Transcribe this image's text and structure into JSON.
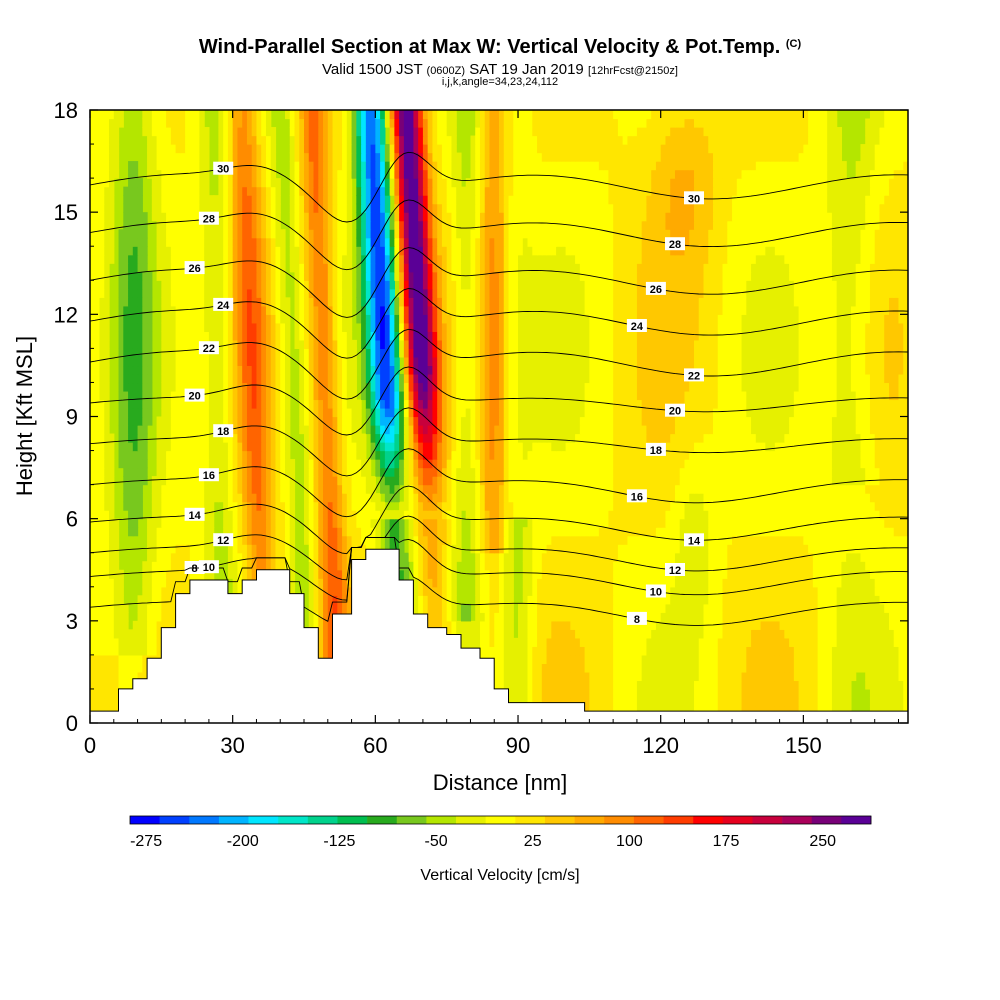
{
  "header": {
    "title": "Wind-Parallel Section at Max W: Vertical Velocity & Pot.Temp.",
    "title_unit": "(C)",
    "valid_a": "Valid 1500 JST",
    "valid_b": "(0600Z)",
    "valid_c": "SAT 19 Jan 2019",
    "valid_d": "[12hrFcst@2150z]",
    "ijk": "i,j,k,angle=34,23,24,112"
  },
  "chart_data": {
    "type": "heatmap",
    "xlabel": "Distance [nm]",
    "ylabel": "Height [Kft MSL]",
    "xlim": [
      0,
      172
    ],
    "ylim": [
      0,
      18
    ],
    "x_ticks": [
      0,
      30,
      60,
      90,
      120,
      150
    ],
    "y_ticks": [
      0,
      3,
      6,
      9,
      12,
      15,
      18
    ],
    "colorbar": {
      "title": "Vertical Velocity [cm/s]",
      "tick_labels": [
        "-275",
        "-200",
        "-125",
        "-50",
        "25",
        "100",
        "175",
        "250"
      ],
      "tick_values": [
        -275,
        -200,
        -125,
        -50,
        25,
        100,
        175,
        250
      ],
      "min": -287.5,
      "max": 287.5,
      "colors": [
        "#0000ff",
        "#0040ff",
        "#0078ff",
        "#00b4ff",
        "#00e6ff",
        "#00e6c8",
        "#00d28c",
        "#00be50",
        "#28aa1e",
        "#78c81e",
        "#b4e600",
        "#e6f000",
        "#ffff00",
        "#ffe600",
        "#ffc800",
        "#ffaa00",
        "#ff8c00",
        "#ff6400",
        "#ff3c00",
        "#ff0000",
        "#e6001e",
        "#c8003c",
        "#aa005a",
        "#780078",
        "#5a0096"
      ]
    },
    "terrain_kft": [
      [
        0,
        0.35
      ],
      [
        6,
        0.35
      ],
      [
        6,
        1.0
      ],
      [
        9,
        1.0
      ],
      [
        9,
        1.3
      ],
      [
        12,
        1.3
      ],
      [
        12,
        1.9
      ],
      [
        15,
        1.9
      ],
      [
        15,
        2.8
      ],
      [
        18,
        2.8
      ],
      [
        18,
        3.8
      ],
      [
        21,
        3.8
      ],
      [
        21,
        4.2
      ],
      [
        29,
        4.2
      ],
      [
        29,
        3.8
      ],
      [
        32,
        3.8
      ],
      [
        32,
        4.2
      ],
      [
        35,
        4.2
      ],
      [
        35,
        4.5
      ],
      [
        42,
        4.5
      ],
      [
        42,
        3.8
      ],
      [
        45,
        3.8
      ],
      [
        45,
        2.8
      ],
      [
        48,
        2.8
      ],
      [
        48,
        1.9
      ],
      [
        51,
        1.9
      ],
      [
        51,
        3.2
      ],
      [
        55,
        3.2
      ],
      [
        55,
        4.8
      ],
      [
        58,
        4.8
      ],
      [
        58,
        5.1
      ],
      [
        65,
        5.1
      ],
      [
        65,
        4.2
      ],
      [
        68,
        4.2
      ],
      [
        68,
        3.2
      ],
      [
        71,
        3.2
      ],
      [
        71,
        2.8
      ],
      [
        75,
        2.8
      ],
      [
        75,
        2.6
      ],
      [
        78,
        2.6
      ],
      [
        78,
        2.2
      ],
      [
        82,
        2.2
      ],
      [
        82,
        1.9
      ],
      [
        85,
        1.9
      ],
      [
        85,
        1.0
      ],
      [
        88,
        1.0
      ],
      [
        88,
        0.6
      ],
      [
        104,
        0.6
      ],
      [
        104,
        0.35
      ],
      [
        172,
        0.35
      ]
    ],
    "theta_contours": [
      {
        "label": "8",
        "base_kft": 3.4
      },
      {
        "label": "10",
        "base_kft": 4.3
      },
      {
        "label": "12",
        "base_kft": 5.0
      },
      {
        "label": "14",
        "base_kft": 5.9
      },
      {
        "label": "16",
        "base_kft": 7.0
      },
      {
        "label": "18",
        "base_kft": 8.2
      },
      {
        "label": "20",
        "base_kft": 9.4
      },
      {
        "label": "22",
        "base_kft": 10.6
      },
      {
        "label": "24",
        "base_kft": 11.8
      },
      {
        "label": "26",
        "base_kft": 13.0
      },
      {
        "label": "28",
        "base_kft": 14.4
      },
      {
        "label": "30",
        "base_kft": 15.8
      }
    ]
  }
}
